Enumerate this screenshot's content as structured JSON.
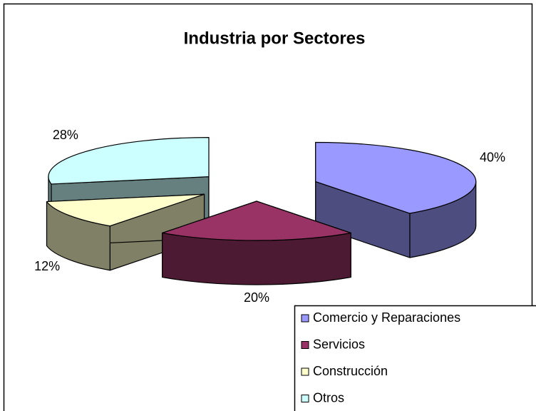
{
  "chart_data": {
    "type": "pie3d",
    "title": "Industria por Sectores",
    "categories": [
      "Comercio y Reparaciones",
      "Servicios",
      "Construcción",
      "Otros"
    ],
    "values": [
      40,
      20,
      12,
      28
    ],
    "value_labels": [
      "40%",
      "20%",
      "12%",
      "28%"
    ],
    "colors": [
      "#9999ff",
      "#993366",
      "#ffffcc",
      "#ccffff"
    ],
    "legend": "bottom-right"
  }
}
